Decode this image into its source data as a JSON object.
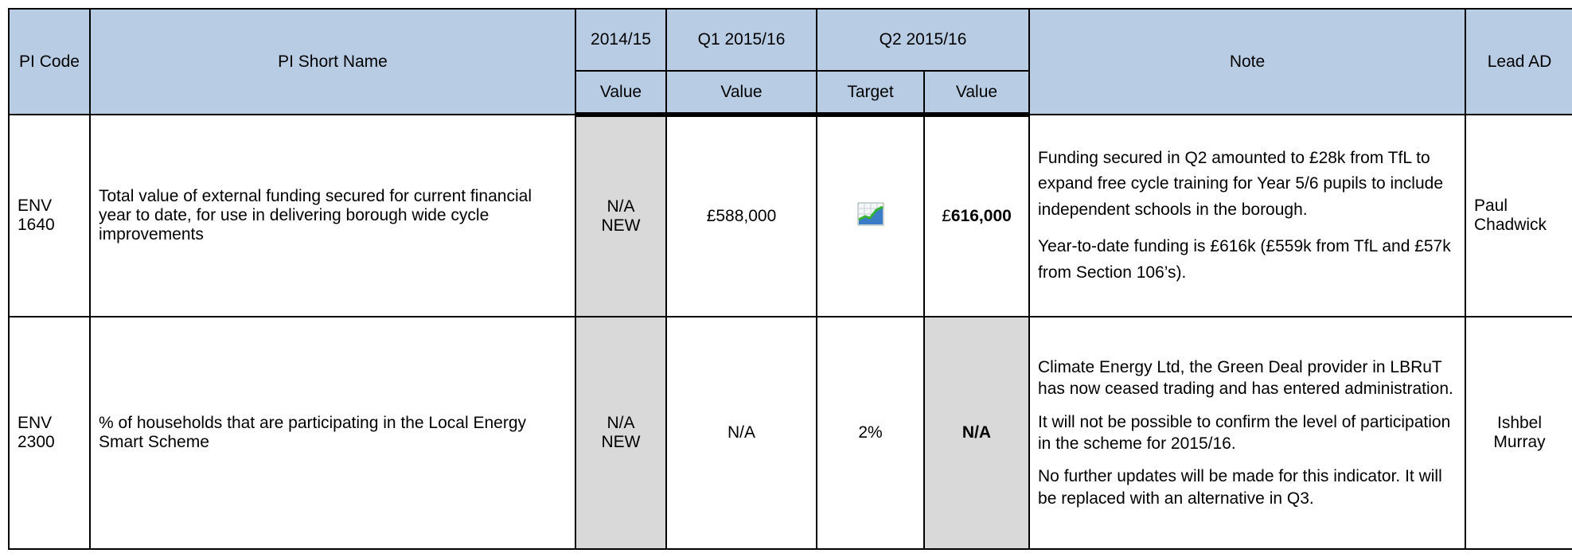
{
  "header": {
    "row1": [
      "PI Code",
      "PI Short Name",
      "2014/15",
      "Q1 2015/16",
      "Q2 2015/16",
      "Note",
      "Lead AD"
    ],
    "row2": [
      "Value",
      "Value",
      "Target",
      "Value"
    ]
  },
  "rows": [
    {
      "code": [
        "ENV",
        "1640"
      ],
      "name": "Total value of external funding secured for current financial year to date, for use in delivering borough wide cycle improvements",
      "v2014": [
        "N/A",
        "NEW"
      ],
      "q1": "£588,000",
      "target": null,
      "value_currency": "£",
      "value_amount": "616,000",
      "note": [
        "Funding secured in Q2 amounted to £28k from TfL to expand free cycle training for Year 5/6 pupils to include independent schools in the borough.",
        "Year-to-date funding is £616k (£559k from TfL and £57k from Section 106’s)."
      ],
      "lead": "Paul Chadwick"
    },
    {
      "code": [
        "ENV",
        "2300"
      ],
      "name": "% of households that are participating in the Local Energy Smart Scheme",
      "v2014": [
        "N/A",
        "NEW"
      ],
      "q1": "N/A",
      "target": "2%",
      "value_amount": "N/A",
      "note": [
        "Climate Energy Ltd, the Green Deal provider in LBRuT has now ceased trading and has entered administration.",
        "It will not be possible to confirm the level of participation in the scheme for 2015/16.",
        "No further updates will be made for this indicator. It will be replaced with an alternative in Q3."
      ],
      "lead": "Ishbel Murray"
    }
  ]
}
